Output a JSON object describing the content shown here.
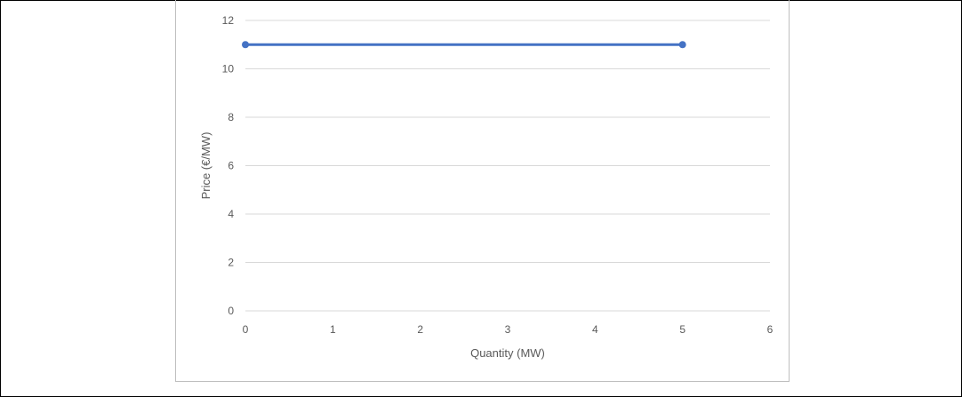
{
  "chart_data": {
    "type": "line",
    "title": "",
    "xlabel": "Quantity (MW)",
    "ylabel": "Price (€/MW)",
    "xlim": [
      0,
      6
    ],
    "ylim": [
      0,
      12
    ],
    "x_ticks": [
      0,
      1,
      2,
      3,
      4,
      5,
      6
    ],
    "y_ticks": [
      0,
      2,
      4,
      6,
      8,
      10,
      12
    ],
    "grid": "horizontal",
    "legend": "none",
    "series": [
      {
        "color": "#4472c4",
        "x": [
          0,
          5
        ],
        "y": [
          11,
          11
        ]
      }
    ]
  }
}
